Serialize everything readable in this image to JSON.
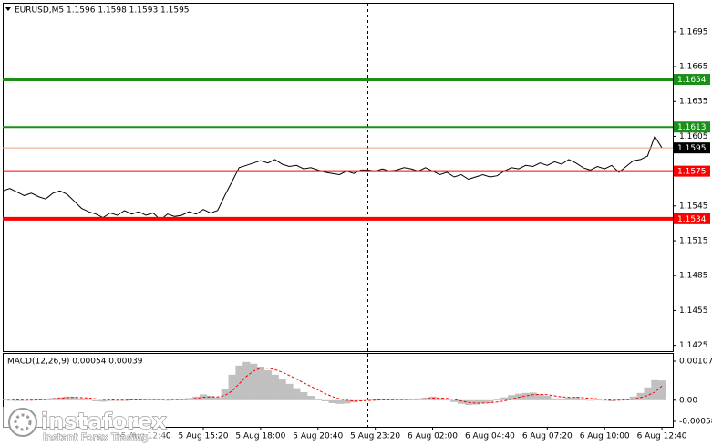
{
  "chart_data": [
    {
      "type": "line",
      "title": "EURUSD,M5  1.1596 1.1598 1.1593 1.1595",
      "color": "#000000",
      "categories": [
        null,
        null,
        null,
        null,
        null,
        null,
        null,
        null,
        null,
        null,
        null,
        null,
        null,
        null,
        null,
        null,
        null,
        null,
        null,
        null,
        "5 Aug 12:40",
        null,
        null,
        null,
        null,
        null,
        null,
        null,
        "5 Aug 15:20",
        null,
        null,
        null,
        null,
        null,
        null,
        null,
        "5 Aug 18:00",
        null,
        null,
        null,
        null,
        null,
        null,
        null,
        "5 Aug 20:40",
        null,
        null,
        null,
        null,
        null,
        null,
        null,
        "5 Aug 23:20",
        null,
        null,
        null,
        null,
        null,
        null,
        null,
        "6 Aug 02:00",
        null,
        null,
        null,
        null,
        null,
        null,
        null,
        "6 Aug 04:40",
        null,
        null,
        null,
        null,
        null,
        null,
        null,
        "6 Aug 07:20",
        null,
        null,
        null,
        null,
        null,
        null,
        null,
        "6 Aug 10:00",
        null,
        null,
        null,
        null,
        null,
        null,
        null,
        "6 Aug 12:40"
      ],
      "values": [
        1.1558,
        1.156,
        1.1557,
        1.1554,
        1.1556,
        1.1553,
        1.1551,
        1.1556,
        1.1558,
        1.1555,
        1.1549,
        1.1543,
        1.154,
        1.1538,
        1.1535,
        1.1539,
        1.1537,
        1.1541,
        1.1538,
        1.154,
        1.1537,
        1.1539,
        1.1533,
        1.1538,
        1.1536,
        1.1537,
        1.154,
        1.1538,
        1.1542,
        1.1539,
        1.1541,
        1.1554,
        1.1566,
        1.1578,
        1.158,
        1.1582,
        1.1584,
        1.1582,
        1.1585,
        1.1581,
        1.1579,
        1.158,
        1.1577,
        1.1578,
        1.1576,
        1.1574,
        1.1573,
        1.1572,
        1.1575,
        1.1573,
        1.1576,
        1.1576,
        1.1575,
        1.1577,
        1.1575,
        1.1576,
        1.1578,
        1.1577,
        1.1575,
        1.1578,
        1.1575,
        1.1572,
        1.1574,
        1.157,
        1.1572,
        1.1568,
        1.157,
        1.1572,
        1.157,
        1.1571,
        1.1575,
        1.1578,
        1.1577,
        1.158,
        1.1579,
        1.1582,
        1.158,
        1.1583,
        1.1581,
        1.1585,
        1.1582,
        1.1578,
        1.1576,
        1.1579,
        1.1577,
        1.158,
        1.1574,
        1.1579,
        1.1584,
        1.1585,
        1.1588,
        1.1605,
        1.1595
      ],
      "last_price_color": "#e8a080",
      "ylim": [
        1.142,
        1.172
      ],
      "yticks": [
        1.1695,
        1.1665,
        1.1635,
        1.1605,
        1.1545,
        1.1515,
        1.1485,
        1.1455,
        1.1425
      ],
      "levels": [
        {
          "value": 1.1654,
          "color": "#1a8f1a",
          "thick": true
        },
        {
          "value": 1.1613,
          "color": "#1a8f1a",
          "thick": false
        },
        {
          "value": 1.1575,
          "color": "#ff0000",
          "thick": false
        },
        {
          "value": 1.1534,
          "color": "#ff0000",
          "thick": true
        }
      ]
    },
    {
      "type": "bar",
      "title": "MACD(12,26,9) 0.00054 0.00039",
      "series": [
        {
          "color": "#c0c0c0",
          "values": [
            2e-05,
            0.0,
            -2e-05,
            -1e-05,
            1e-05,
            3e-05,
            4e-05,
            6e-05,
            8e-05,
            0.0001,
            9e-05,
            5e-05,
            1e-05,
            -3e-05,
            -4e-05,
            -2e-05,
            -1e-05,
            0.0,
            2e-05,
            1e-05,
            3e-05,
            4e-05,
            2e-05,
            0.0,
            1e-05,
            3e-05,
            6e-05,
            0.0001,
            0.00016,
            0.00012,
            8e-05,
            0.0003,
            0.0007,
            0.00095,
            0.00105,
            0.001,
            0.00092,
            0.00082,
            0.0007,
            0.00058,
            0.00045,
            0.00033,
            0.00022,
            0.00012,
            4e-05,
            -3e-05,
            -8e-05,
            -0.0001,
            -9e-05,
            -6e-05,
            -2e-05,
            1e-05,
            3e-05,
            2e-05,
            3e-05,
            2e-05,
            3e-05,
            4e-05,
            5e-05,
            7e-05,
            0.0001,
            6e-05,
            2e-05,
            -5e-05,
            -0.0001,
            -0.00013,
            -0.00012,
            -9e-05,
            -5e-05,
            2e-05,
            8e-05,
            0.00014,
            0.00018,
            0.0002,
            0.00021,
            0.00017,
            0.00012,
            5e-05,
            3e-05,
            7e-05,
            9e-05,
            4e-05,
            0.0,
            2e-05,
            -1e-05,
            -3e-05,
            1e-05,
            4e-05,
            0.0001,
            0.0002,
            0.00035,
            0.00055,
            0.00054
          ]
        },
        {
          "type": "line",
          "color": "#ff0000",
          "values": [
            3e-05,
            2e-05,
            1e-05,
            0.0,
            0.0,
            1e-05,
            2e-05,
            4e-05,
            5e-05,
            7e-05,
            8e-05,
            7e-05,
            6e-05,
            4e-05,
            2e-05,
            1e-05,
            0.0,
            0.0,
            1e-05,
            1e-05,
            2e-05,
            2e-05,
            2e-05,
            2e-05,
            2e-05,
            2e-05,
            3e-05,
            5e-05,
            8e-05,
            9e-05,
            9e-05,
            0.00013,
            0.00025,
            0.00045,
            0.00065,
            0.0008,
            0.00088,
            0.00088,
            0.00084,
            0.00077,
            0.00068,
            0.00058,
            0.00048,
            0.00038,
            0.00028,
            0.00018,
            0.0001,
            4e-05,
            0.0,
            -2e-05,
            -2e-05,
            -1e-05,
            0.0,
            1e-05,
            1e-05,
            2e-05,
            2e-05,
            3e-05,
            3e-05,
            4e-05,
            6e-05,
            6e-05,
            5e-05,
            2e-05,
            -2e-05,
            -6e-05,
            -8e-05,
            -8e-05,
            -7e-05,
            -5e-05,
            -2e-05,
            3e-05,
            8e-05,
            0.00012,
            0.00015,
            0.00016,
            0.00015,
            0.00012,
            9e-05,
            8e-05,
            8e-05,
            7e-05,
            5e-05,
            4e-05,
            2e-05,
            0.0,
            0.0,
            1e-05,
            3e-05,
            7e-05,
            0.00013,
            0.00022,
            0.00039
          ]
        }
      ],
      "ylim": [
        -0.00073,
        0.00127
      ],
      "yticks": [
        0.00107,
        {
          "value": 0,
          "label": "0.00"
        },
        -0.00058
      ]
    }
  ],
  "watermark": {
    "name": "instaforex",
    "tagline": "Instant Forex Trading"
  }
}
